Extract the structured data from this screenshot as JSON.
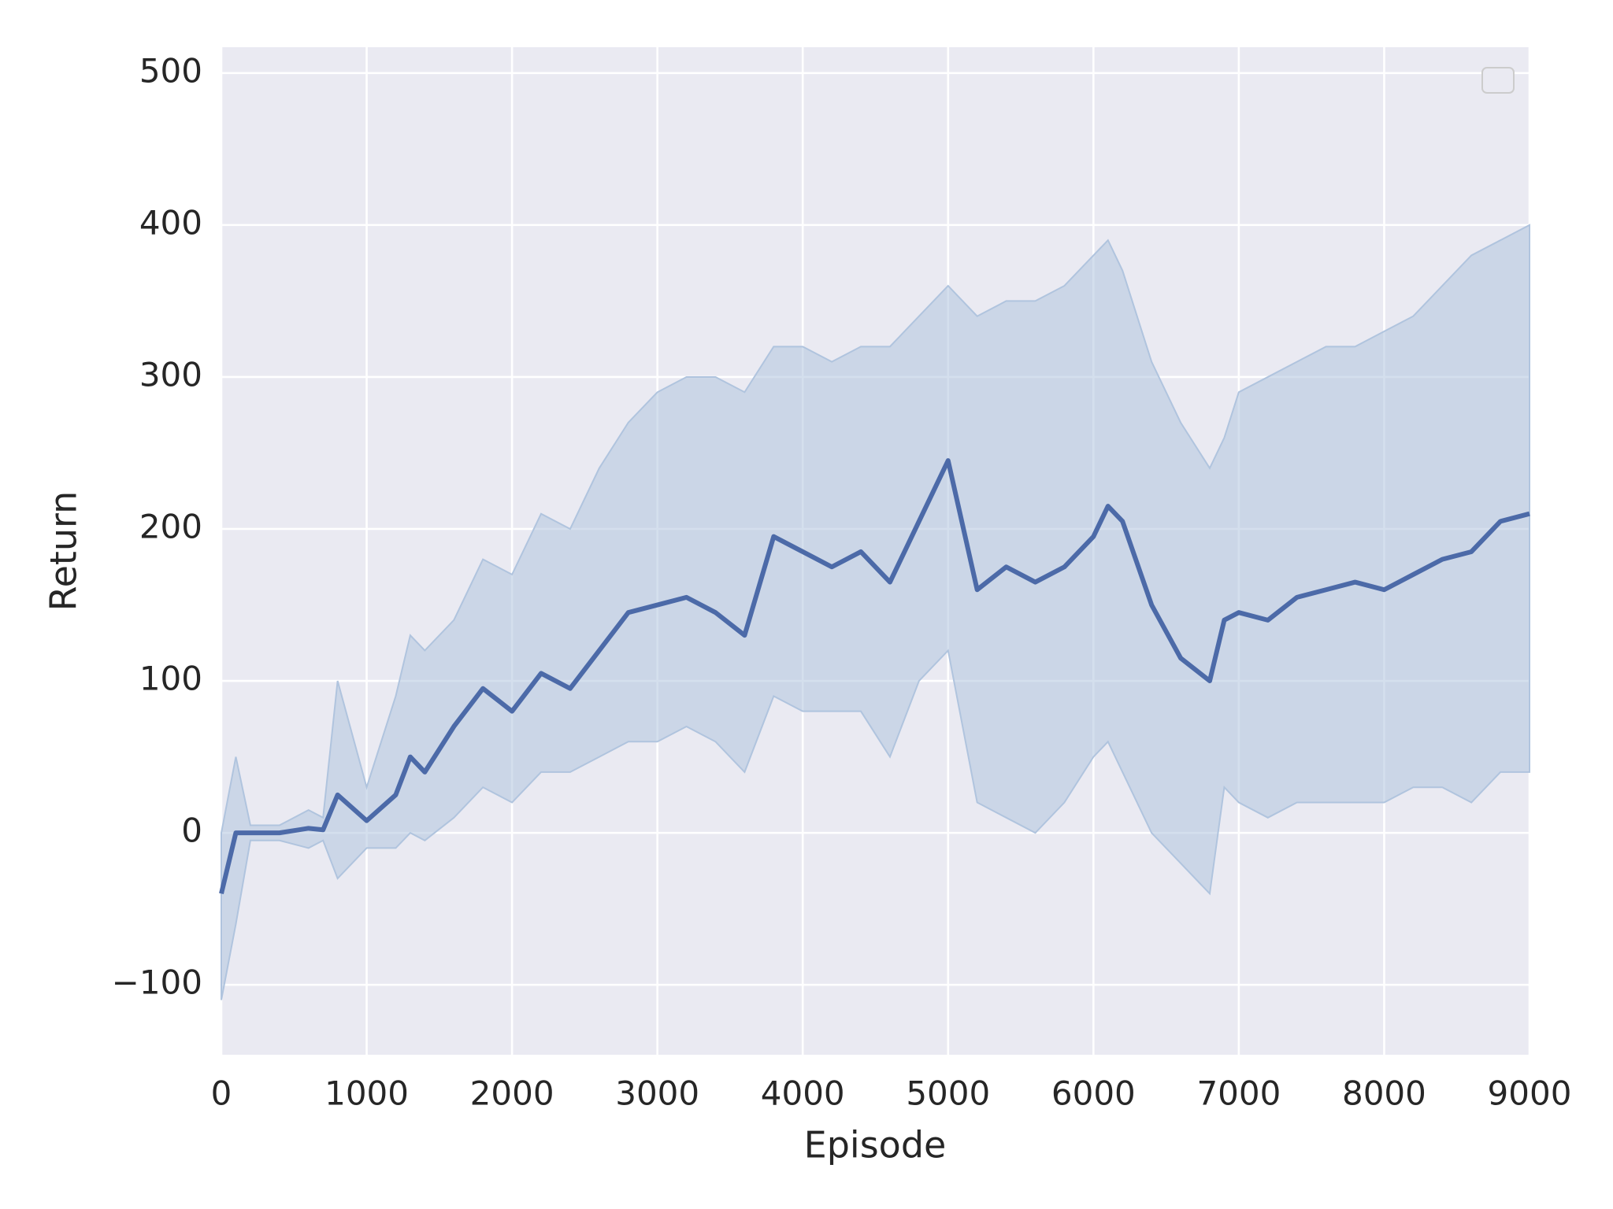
{
  "chart_data": {
    "type": "line",
    "x_label": "Episode",
    "y_label": "Return",
    "x": [
      0,
      100,
      200,
      400,
      600,
      700,
      800,
      1000,
      1200,
      1300,
      1400,
      1600,
      1800,
      2000,
      2200,
      2400,
      2600,
      2800,
      3000,
      3200,
      3400,
      3600,
      3800,
      4000,
      4200,
      4400,
      4600,
      4800,
      5000,
      5200,
      5400,
      5600,
      5800,
      6000,
      6100,
      6200,
      6400,
      6600,
      6800,
      6900,
      7000,
      7200,
      7400,
      7600,
      7800,
      8000,
      8200,
      8400,
      8600,
      8800,
      9000
    ],
    "series": [
      {
        "color": "#4c6aa8",
        "values": [
          -40,
          0,
          0,
          0,
          3,
          2,
          25,
          8,
          25,
          50,
          40,
          70,
          95,
          80,
          105,
          95,
          120,
          145,
          150,
          155,
          145,
          130,
          195,
          185,
          175,
          185,
          165,
          205,
          245,
          160,
          175,
          165,
          175,
          195,
          215,
          205,
          150,
          115,
          100,
          140,
          145,
          140,
          155,
          160,
          165,
          160,
          170,
          180,
          185,
          205,
          210
        ],
        "band_upper": [
          0,
          50,
          5,
          5,
          15,
          10,
          100,
          30,
          90,
          130,
          120,
          140,
          180,
          170,
          210,
          200,
          240,
          270,
          290,
          300,
          300,
          290,
          320,
          320,
          310,
          320,
          320,
          340,
          360,
          340,
          350,
          350,
          360,
          380,
          390,
          370,
          310,
          270,
          240,
          260,
          290,
          300,
          310,
          320,
          320,
          330,
          340,
          360,
          380,
          390,
          400
        ],
        "band_lower": [
          -110,
          -60,
          -5,
          -5,
          -10,
          -5,
          -30,
          -10,
          -10,
          0,
          -5,
          10,
          30,
          20,
          40,
          40,
          50,
          60,
          60,
          70,
          60,
          40,
          90,
          80,
          80,
          80,
          50,
          100,
          120,
          20,
          10,
          0,
          20,
          50,
          60,
          40,
          0,
          -20,
          -40,
          30,
          20,
          10,
          20,
          20,
          20,
          20,
          30,
          30,
          20,
          40,
          40
        ],
        "band_color": "#b0c4de"
      }
    ],
    "xlim": [
      0,
      9000
    ],
    "ylim": [
      -146,
      517
    ],
    "xticks": [
      0,
      1000,
      2000,
      3000,
      4000,
      5000,
      6000,
      7000,
      8000,
      9000
    ],
    "yticks": [
      {
        "value": -100,
        "label": "−100"
      },
      0,
      100,
      200,
      300,
      400,
      500
    ],
    "grid": true,
    "legend": "upper right"
  }
}
